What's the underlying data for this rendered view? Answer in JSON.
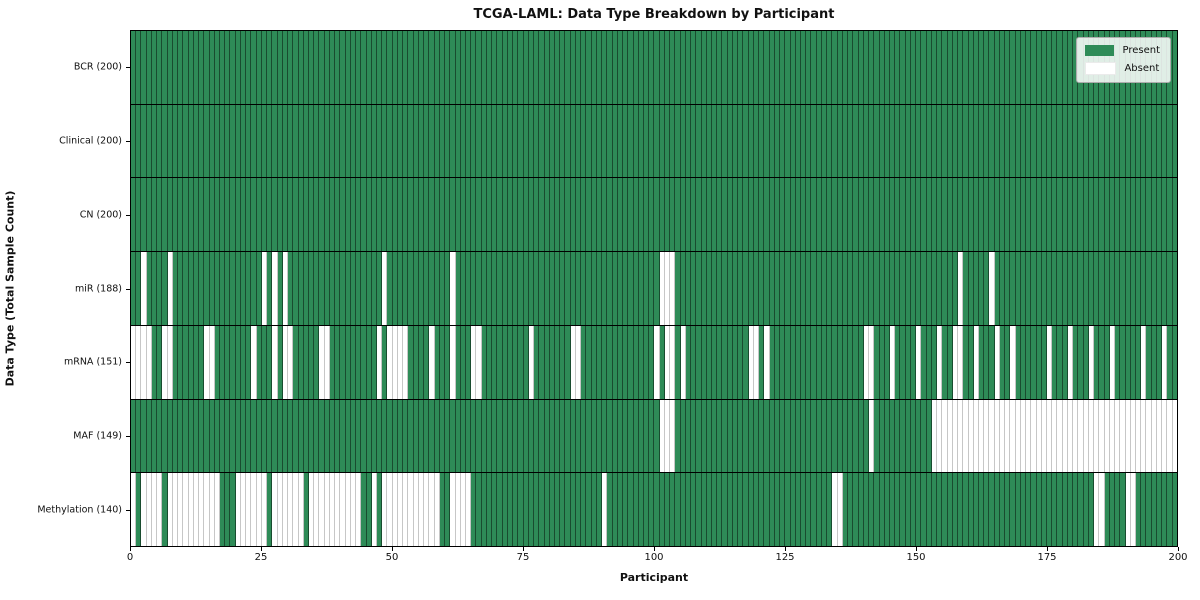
{
  "chart_data": {
    "type": "heatmap",
    "title": "TCGA-LAML: Data Type Breakdown by Participant",
    "xlabel": "Participant",
    "ylabel": "Data Type (Total Sample Count)",
    "n_participants": 200,
    "x_ticks": [
      0,
      25,
      50,
      75,
      100,
      125,
      150,
      175,
      200
    ],
    "legend_position": "upper right",
    "grid": false,
    "colors": {
      "present": "#2e8b57",
      "absent": "#ffffff",
      "edge_on_present": "rgba(0,0,0,0.45)",
      "edge_on_absent": "rgba(0,0,0,0.22)"
    },
    "legend": [
      {
        "label": "Present",
        "color": "#2e8b57"
      },
      {
        "label": "Absent",
        "color": "#ffffff"
      }
    ],
    "rows": [
      {
        "label": "BCR (200)",
        "data_type": "BCR",
        "present_count": 200,
        "absent_participants": []
      },
      {
        "label": "Clinical (200)",
        "data_type": "Clinical",
        "present_count": 200,
        "absent_participants": []
      },
      {
        "label": "CN (200)",
        "data_type": "CN",
        "present_count": 200,
        "absent_participants": []
      },
      {
        "label": "miR (188)",
        "data_type": "miR",
        "present_count": 188,
        "absent_participants": [
          2,
          7,
          25,
          27,
          29,
          48,
          61,
          101,
          102,
          103,
          158,
          164
        ]
      },
      {
        "label": "mRNA (151)",
        "data_type": "mRNA",
        "present_count": 151,
        "absent_participants": [
          0,
          1,
          2,
          3,
          6,
          7,
          14,
          15,
          23,
          27,
          29,
          30,
          36,
          37,
          47,
          49,
          50,
          51,
          52,
          57,
          61,
          65,
          66,
          76,
          84,
          85,
          100,
          102,
          103,
          105,
          118,
          119,
          121,
          140,
          141,
          145,
          150,
          154,
          157,
          158,
          161,
          165,
          168,
          175,
          179,
          183,
          187,
          193,
          197
        ]
      },
      {
        "label": "MAF (149)",
        "data_type": "MAF",
        "present_count": 149,
        "absent_participants": [
          101,
          102,
          103,
          141,
          153,
          154,
          155,
          156,
          157,
          158,
          159,
          160,
          161,
          162,
          163,
          164,
          165,
          166,
          167,
          168,
          169,
          170,
          171,
          172,
          173,
          174,
          175,
          176,
          177,
          178,
          179,
          180,
          181,
          182,
          183,
          184,
          185,
          186,
          187,
          188,
          189,
          190,
          191,
          192,
          193,
          194,
          195,
          196,
          197,
          198,
          199
        ]
      },
      {
        "label": "Methylation (140)",
        "data_type": "Methylation",
        "present_count": 140,
        "absent_participants": [
          0,
          2,
          3,
          4,
          5,
          7,
          8,
          9,
          10,
          11,
          12,
          13,
          14,
          15,
          16,
          20,
          21,
          22,
          23,
          24,
          25,
          27,
          28,
          29,
          30,
          31,
          32,
          34,
          35,
          36,
          37,
          38,
          39,
          40,
          41,
          42,
          43,
          46,
          48,
          49,
          50,
          51,
          52,
          53,
          54,
          55,
          56,
          57,
          58,
          61,
          62,
          63,
          64,
          90,
          134,
          135,
          184,
          185,
          190,
          191
        ]
      }
    ]
  }
}
